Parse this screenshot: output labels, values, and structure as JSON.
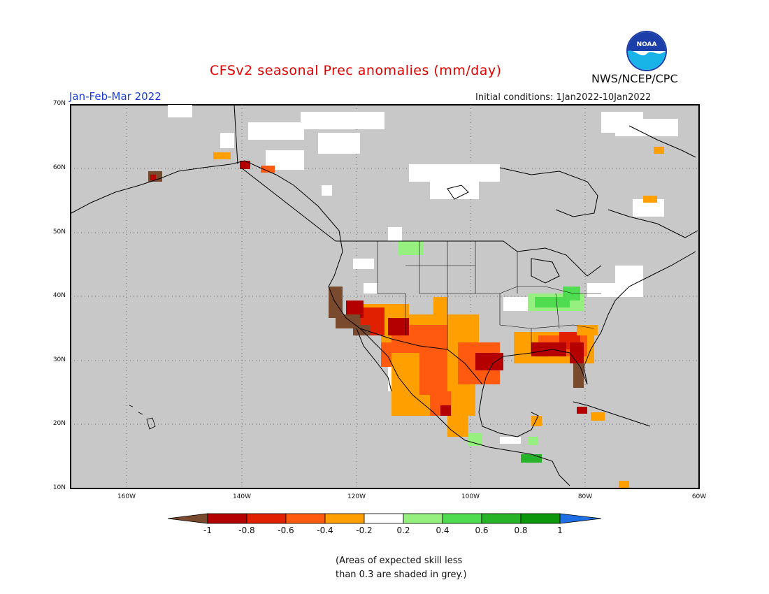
{
  "header": {
    "title": "CFSv2 seasonal Prec anomalies (mm/day)",
    "agency": "NWS/NCEP/CPC",
    "logo_text": "NOAA",
    "period": "Jan-Feb-Mar 2022",
    "initial_conditions": "Initial conditions: 1Jan2022-10Jan2022"
  },
  "map": {
    "lat_labels": [
      "70N",
      "60N",
      "50N",
      "40N",
      "30N",
      "20N",
      "10N"
    ],
    "lon_labels": [
      "160W",
      "140W",
      "120W",
      "100W",
      "80W",
      "60W"
    ],
    "background_color": "#c8c8c8",
    "region": "North America"
  },
  "colorbar": {
    "labels": [
      "-1",
      "-0.8",
      "-0.6",
      "-0.4",
      "-0.2",
      "0.2",
      "0.4",
      "0.6",
      "0.8",
      "1"
    ],
    "colors": [
      "#7a4a2e",
      "#b40000",
      "#e02000",
      "#ff5a10",
      "#ffa000",
      "#ffffff",
      "#96f080",
      "#50dc50",
      "#28b428",
      "#0c960c",
      "#1e6ee6"
    ]
  },
  "note": {
    "line1": "(Areas of expected skill less",
    "line2": "than 0.3 are shaded in grey.)"
  }
}
